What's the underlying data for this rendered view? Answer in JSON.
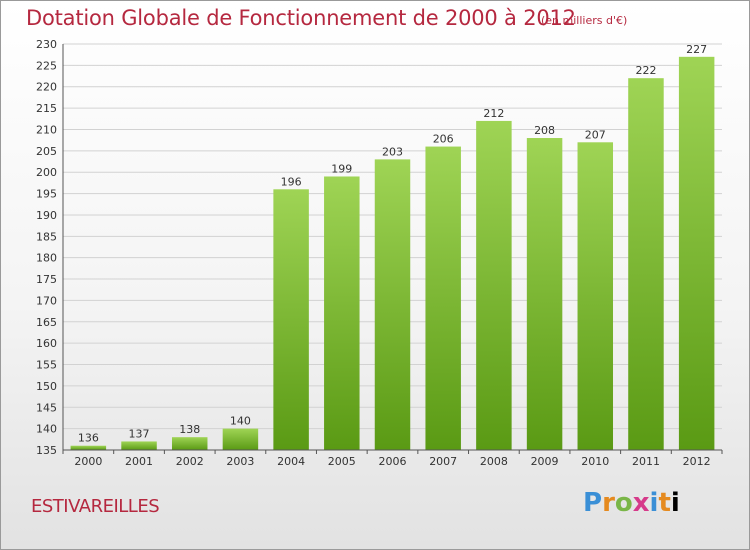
{
  "header": {
    "title": "Dotation Globale de Fonctionnement de 2000 à 2012",
    "subtitle": "(en milliers d'€)"
  },
  "footer": {
    "town": "ESTIVAREILLES",
    "logo_letters": [
      "P",
      "r",
      "o",
      "x",
      "i",
      "t",
      "i"
    ]
  },
  "colors": {
    "title": "#b5283f",
    "bar_top": "#9fd455",
    "bar_bottom": "#5a9a14"
  },
  "chart_data": {
    "type": "bar",
    "title": "Dotation Globale de Fonctionnement de 2000 à 2012",
    "subtitle": "(en milliers d'€)",
    "categories": [
      "2000",
      "2001",
      "2002",
      "2003",
      "2004",
      "2005",
      "2006",
      "2007",
      "2008",
      "2009",
      "2010",
      "2011",
      "2012"
    ],
    "values": [
      136,
      137,
      138,
      140,
      196,
      199,
      203,
      206,
      212,
      208,
      207,
      222,
      227
    ],
    "ylim": [
      135,
      230
    ],
    "yticks": [
      135,
      140,
      145,
      150,
      155,
      160,
      165,
      170,
      175,
      180,
      185,
      190,
      195,
      200,
      205,
      210,
      215,
      220,
      225,
      230
    ],
    "grid": true,
    "xlabel": "",
    "ylabel": ""
  }
}
